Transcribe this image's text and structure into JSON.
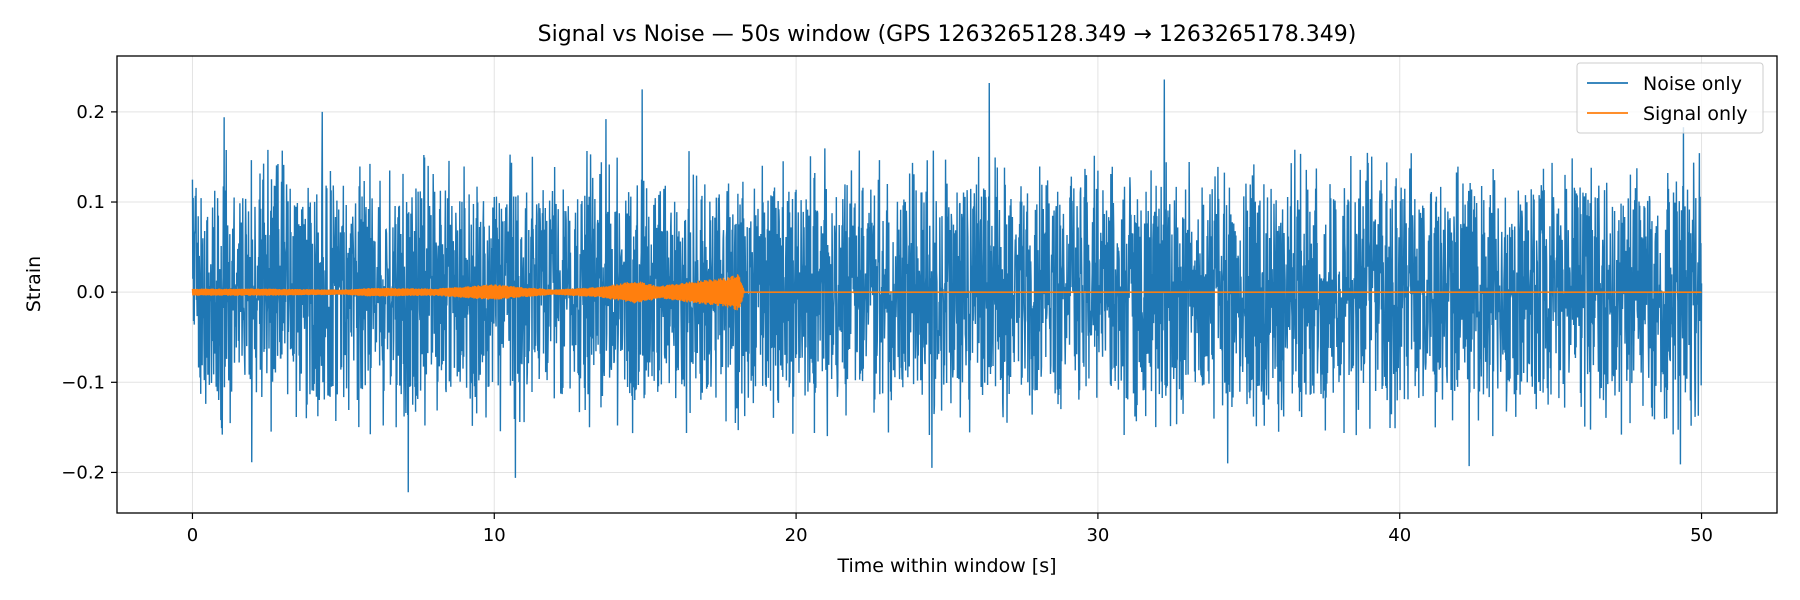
{
  "chart_data": {
    "type": "line",
    "title": "Signal vs Noise — 50s window (GPS 1263265128.349 → 1263265178.349)",
    "xlabel": "Time within window [s]",
    "ylabel": "Strain",
    "xlim": [
      -2.5,
      52.5
    ],
    "ylim": [
      -0.245,
      0.262
    ],
    "xticks": [
      0,
      10,
      20,
      30,
      40,
      50
    ],
    "xtick_labels": [
      "0",
      "10",
      "20",
      "30",
      "40",
      "50"
    ],
    "yticks": [
      -0.2,
      -0.1,
      0.0,
      0.1,
      0.2
    ],
    "ytick_labels": [
      "−0.2",
      "−0.1",
      "0.0",
      "0.1",
      "0.2"
    ],
    "grid": true,
    "legend_position": "top-right",
    "series": [
      {
        "name": "Noise only",
        "color": "#1f77b4",
        "description_kind": "dense noise trace",
        "x_range": [
          0,
          50
        ],
        "typical_amplitude": 0.09,
        "peaks": [
          {
            "x": 1.05,
            "y": 0.194
          },
          {
            "x": 4.3,
            "y": 0.2
          },
          {
            "x": 7.15,
            "y": -0.222
          },
          {
            "x": 10.7,
            "y": -0.206
          },
          {
            "x": 13.7,
            "y": 0.192
          },
          {
            "x": 14.9,
            "y": 0.225
          },
          {
            "x": 24.5,
            "y": -0.195
          },
          {
            "x": 26.4,
            "y": 0.232
          },
          {
            "x": 32.2,
            "y": 0.236
          },
          {
            "x": 34.3,
            "y": -0.19
          },
          {
            "x": 42.3,
            "y": -0.193
          },
          {
            "x": 49.3,
            "y": -0.191
          },
          {
            "x": 49.4,
            "y": 0.183
          }
        ]
      },
      {
        "name": "Signal only",
        "color": "#ff7f0e",
        "description_kind": "chirp signal ending at merger",
        "x_range": [
          0,
          50
        ],
        "merger_time": 18.1,
        "envelope": [
          {
            "x": 0,
            "y": 0.004
          },
          {
            "x": 2.5,
            "y": 0.004
          },
          {
            "x": 5,
            "y": 0.003
          },
          {
            "x": 6,
            "y": 0.005
          },
          {
            "x": 8,
            "y": 0.004
          },
          {
            "x": 10,
            "y": 0.009
          },
          {
            "x": 10.8,
            "y": 0.006
          },
          {
            "x": 12,
            "y": 0.003
          },
          {
            "x": 13.5,
            "y": 0.006
          },
          {
            "x": 14.7,
            "y": 0.013
          },
          {
            "x": 15.5,
            "y": 0.007
          },
          {
            "x": 16.5,
            "y": 0.012
          },
          {
            "x": 17.6,
            "y": 0.016
          },
          {
            "x": 18.1,
            "y": 0.021
          },
          {
            "x": 18.3,
            "y": 0.0005
          },
          {
            "x": 50,
            "y": 0.0005
          }
        ]
      }
    ]
  }
}
